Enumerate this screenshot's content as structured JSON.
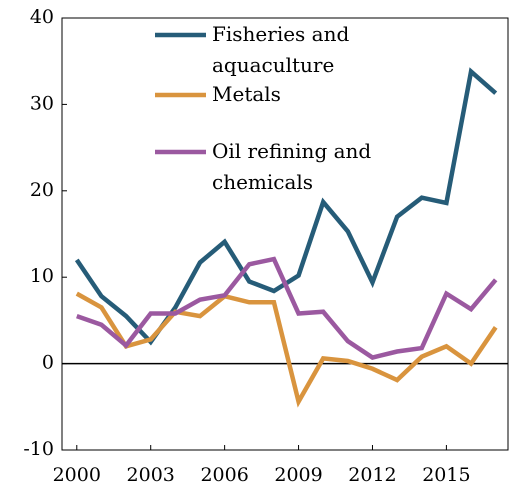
{
  "chart_data": {
    "type": "line",
    "x": [
      2000,
      2001,
      2002,
      2003,
      2004,
      2005,
      2006,
      2007,
      2008,
      2009,
      2010,
      2011,
      2012,
      2013,
      2014,
      2015,
      2016,
      2017
    ],
    "series": [
      {
        "name": "Fisheries and aquaculture",
        "color": "#265c78",
        "values": [
          12.0,
          7.8,
          5.5,
          2.5,
          6.5,
          11.7,
          14.1,
          9.5,
          8.4,
          10.2,
          18.7,
          15.3,
          9.4,
          17.0,
          19.2,
          18.6,
          33.8,
          31.3
        ]
      },
      {
        "name": "Metals",
        "color": "#d9943e",
        "values": [
          8.1,
          6.5,
          2.0,
          2.8,
          6.0,
          5.5,
          7.8,
          7.1,
          7.1,
          -4.4,
          0.6,
          0.3,
          -0.6,
          -1.9,
          0.8,
          2.0,
          0.0,
          4.2
        ]
      },
      {
        "name": "Oil refining and chemicals",
        "color": "#9b59a0",
        "values": [
          5.5,
          4.5,
          2.1,
          5.8,
          5.8,
          7.4,
          7.9,
          11.5,
          12.1,
          5.8,
          6.0,
          2.6,
          0.7,
          1.4,
          1.8,
          8.1,
          6.3,
          9.7
        ]
      }
    ],
    "xlim": [
      1999.4,
      2017.5
    ],
    "xticks": [
      2000,
      2003,
      2006,
      2009,
      2012,
      2015
    ],
    "ylim": [
      -10,
      40
    ],
    "yticks": [
      -10,
      0,
      10,
      20,
      30,
      40
    ]
  }
}
